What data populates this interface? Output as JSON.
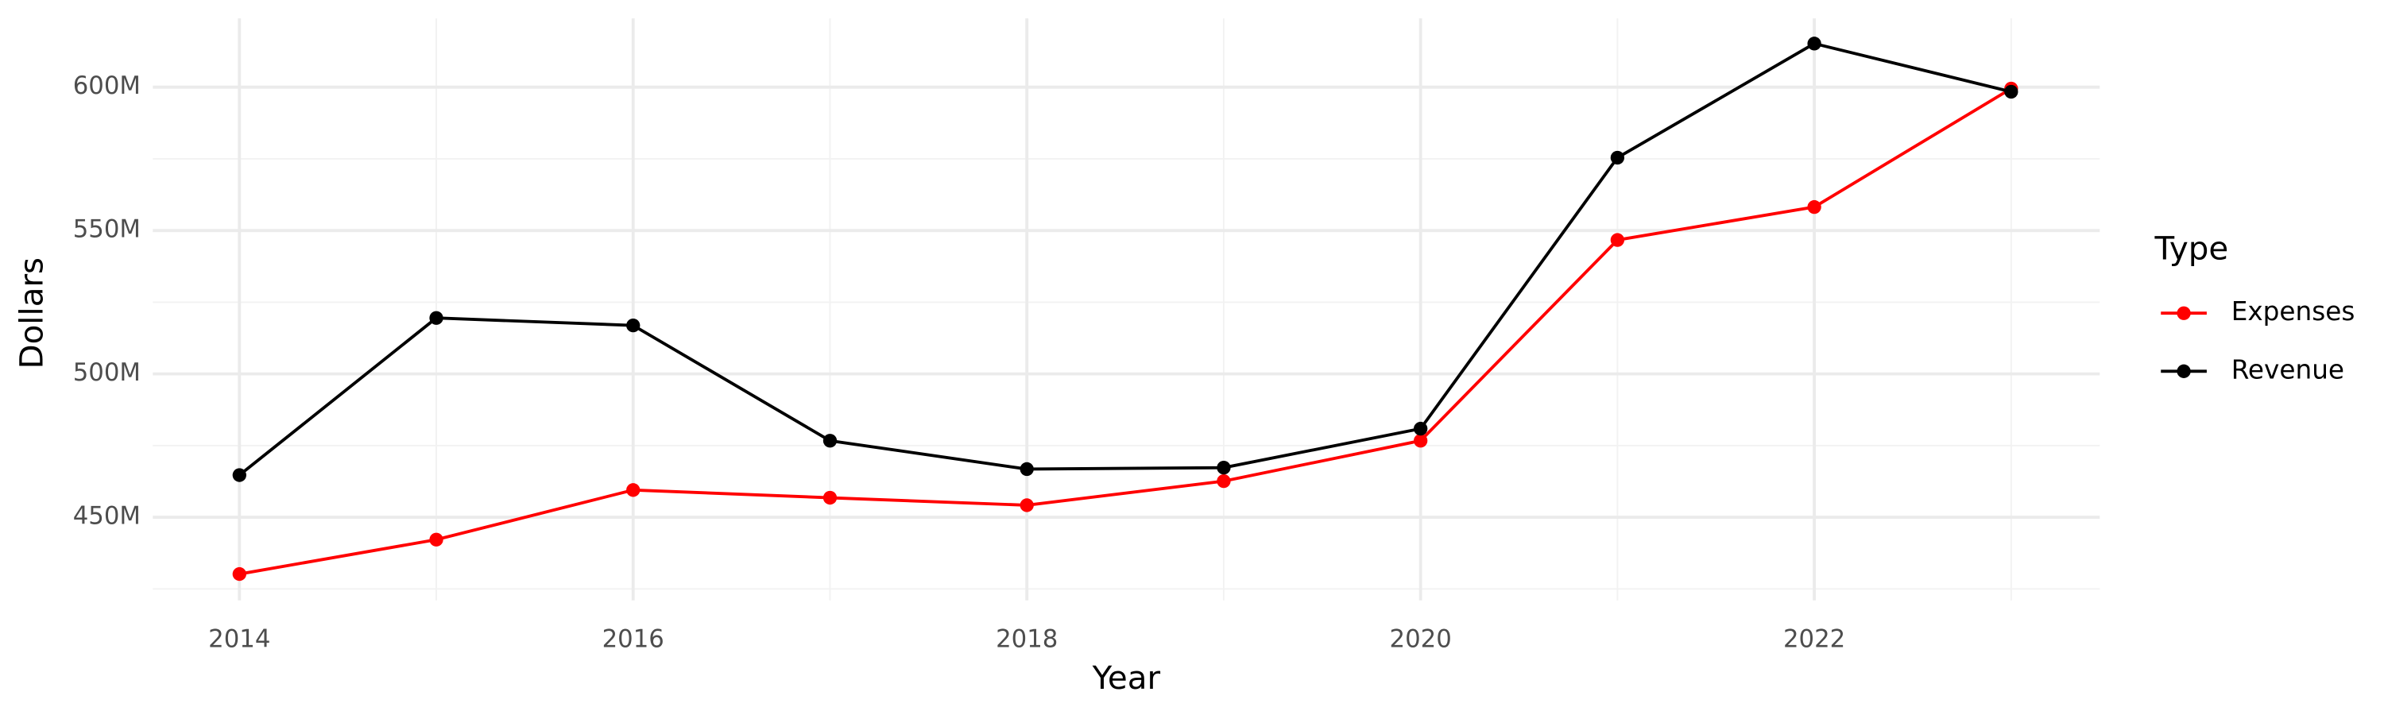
{
  "chart_data": {
    "type": "line",
    "x_label": "Year",
    "y_label": "Dollars",
    "legend_title": "Type",
    "legend_position": "right",
    "grid": true,
    "x": [
      2014,
      2015,
      2016,
      2017,
      2018,
      2019,
      2020,
      2021,
      2022,
      2023
    ],
    "series": [
      {
        "name": "Expenses",
        "color": "#ff0000",
        "values": [
          430200000,
          442200000,
          459500000,
          456800000,
          454200000,
          462600000,
          476700000,
          546700000,
          558200000,
          599500000
        ]
      },
      {
        "name": "Revenue",
        "color": "#000000",
        "values": [
          464700000,
          519500000,
          516900000,
          476700000,
          466800000,
          467300000,
          480900000,
          575400000,
          615200000,
          598400000
        ]
      }
    ],
    "xlim": [
      2013.56,
      2023.45
    ],
    "xticks": [
      2014,
      2016,
      2018,
      2020,
      2022
    ],
    "ylim": [
      421000000,
      624000000
    ],
    "yticks": [
      {
        "value": 450000000,
        "label": "450M"
      },
      {
        "value": 500000000,
        "label": "500M"
      },
      {
        "value": 550000000,
        "label": "550M"
      },
      {
        "value": 600000000,
        "label": "600M"
      }
    ]
  }
}
